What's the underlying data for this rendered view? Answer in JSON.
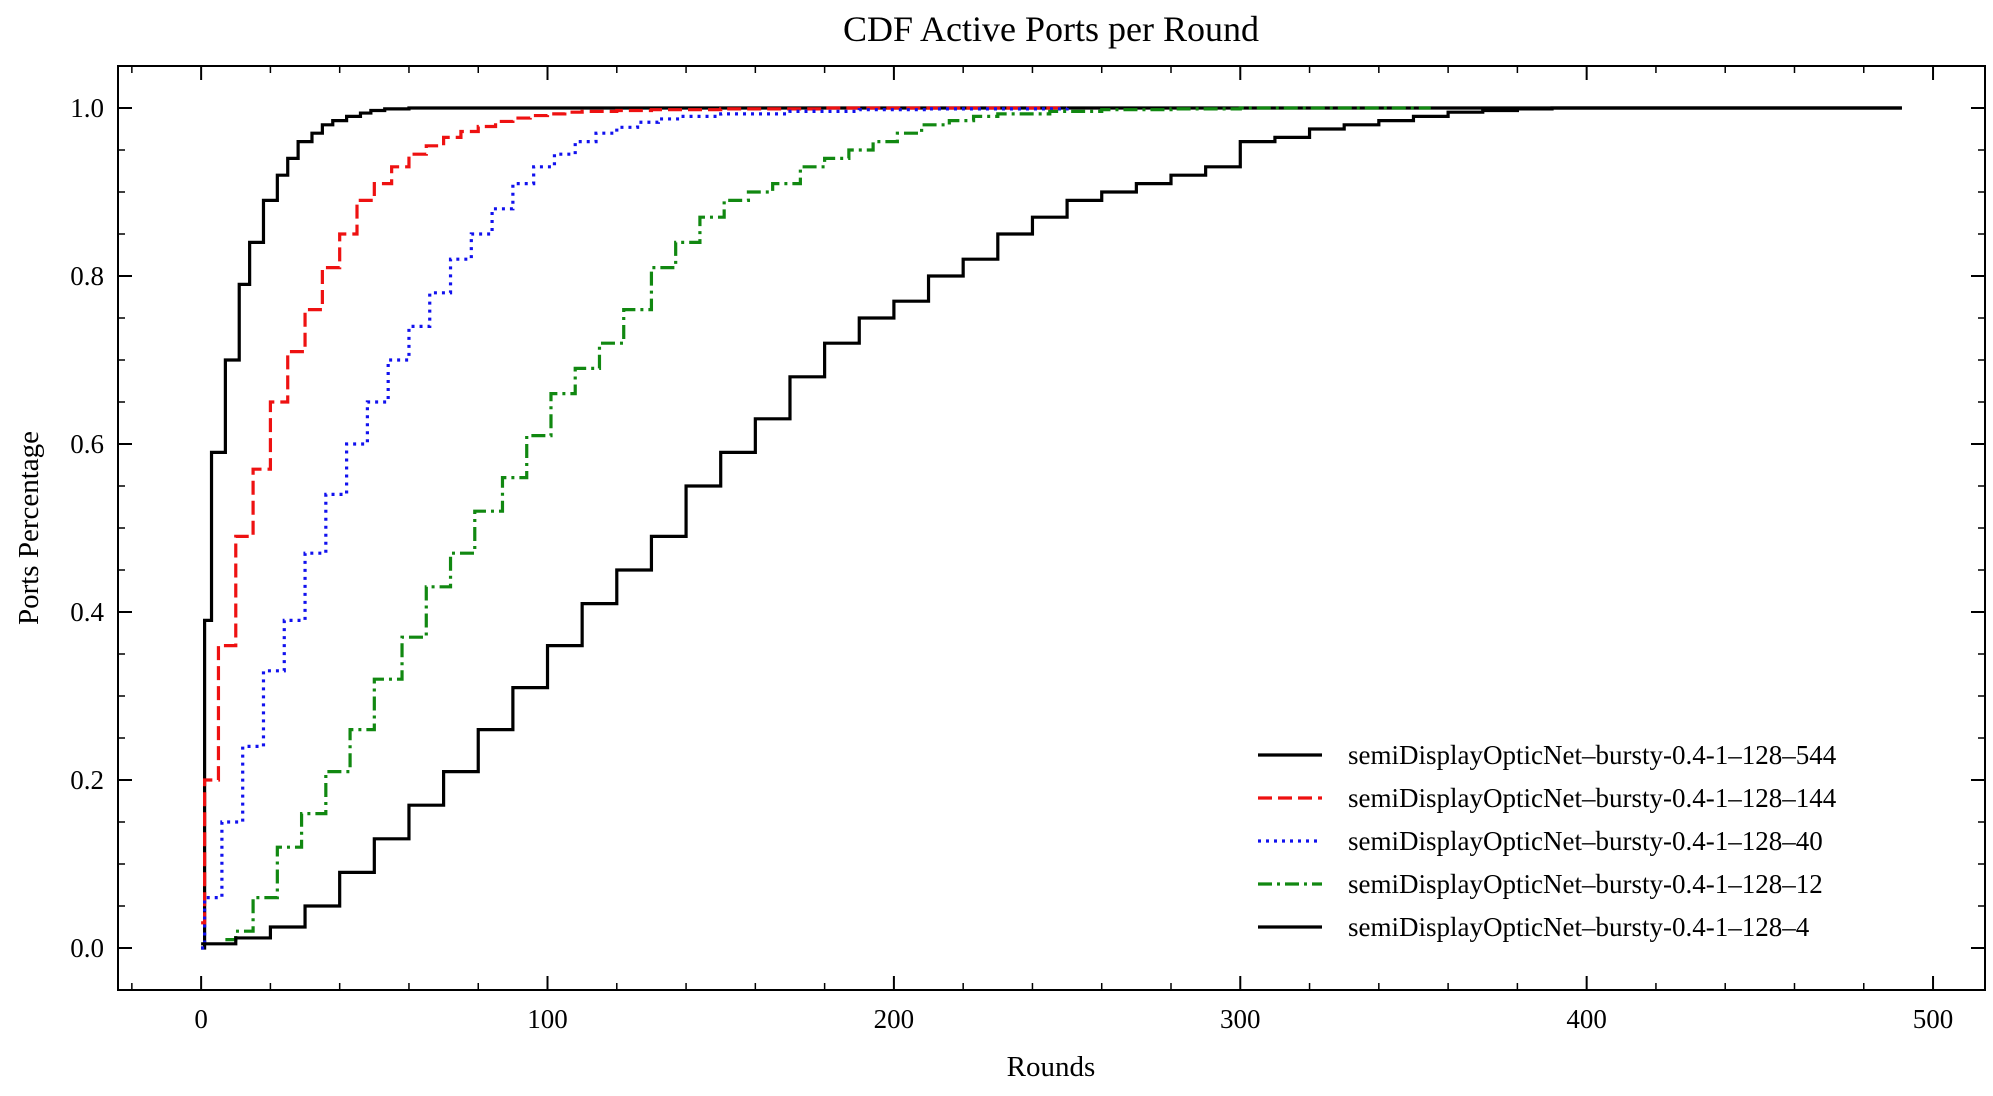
{
  "chart_data": {
    "type": "line",
    "title": "CDF Active Ports per Round",
    "xlabel": "Rounds",
    "ylabel": "Ports Percentage",
    "xlim": [
      -24,
      515
    ],
    "ylim": [
      -0.05,
      1.05
    ],
    "xticks": [
      0,
      100,
      200,
      300,
      400,
      500
    ],
    "xtick_labels": [
      "0",
      "100",
      "200",
      "300",
      "400",
      "500"
    ],
    "yticks": [
      0.0,
      0.2,
      0.4,
      0.6,
      0.8,
      1.0
    ],
    "ytick_labels": [
      "0.0",
      "0.2",
      "0.4",
      "0.6",
      "0.8",
      "1.0"
    ],
    "grid": false,
    "legend_position": "lower-right",
    "step": "post",
    "series": [
      {
        "name": "semiDisplayOpticNet–bursty-0.4-1–128–544",
        "color": "#000000",
        "dash": "solid",
        "x": [
          0,
          1,
          3,
          7,
          11,
          14,
          18,
          22,
          25,
          28,
          32,
          35,
          38,
          42,
          46,
          49,
          53,
          60,
          70,
          90,
          491
        ],
        "y": [
          0.0,
          0.39,
          0.59,
          0.7,
          0.79,
          0.84,
          0.89,
          0.92,
          0.94,
          0.96,
          0.97,
          0.98,
          0.985,
          0.99,
          0.994,
          0.997,
          0.999,
          1.0,
          1.0,
          1.0,
          1.0
        ]
      },
      {
        "name": "semiDisplayOpticNet–bursty-0.4-1–128–144",
        "color": "#ee1111",
        "dash": "dashed",
        "x": [
          0,
          1,
          5,
          10,
          15,
          20,
          25,
          30,
          35,
          40,
          45,
          50,
          55,
          60,
          65,
          70,
          75,
          80,
          85,
          90,
          95,
          100,
          105,
          110,
          120,
          130,
          150,
          180,
          250
        ],
        "y": [
          0.03,
          0.2,
          0.36,
          0.49,
          0.57,
          0.65,
          0.71,
          0.76,
          0.81,
          0.85,
          0.89,
          0.91,
          0.93,
          0.945,
          0.955,
          0.965,
          0.972,
          0.978,
          0.984,
          0.988,
          0.991,
          0.993,
          0.995,
          0.996,
          0.997,
          0.998,
          0.999,
          1.0,
          1.0
        ]
      },
      {
        "name": "semiDisplayOpticNet–bursty-0.4-1–128–40",
        "color": "#1111ee",
        "dash": "dotted",
        "x": [
          0,
          1,
          6,
          12,
          18,
          24,
          30,
          36,
          42,
          48,
          54,
          60,
          66,
          72,
          78,
          84,
          90,
          96,
          102,
          108,
          114,
          120,
          126,
          132,
          138,
          150,
          170,
          190,
          210,
          250
        ],
        "y": [
          0.0,
          0.06,
          0.15,
          0.24,
          0.33,
          0.39,
          0.47,
          0.54,
          0.6,
          0.65,
          0.7,
          0.74,
          0.78,
          0.82,
          0.85,
          0.88,
          0.91,
          0.93,
          0.945,
          0.96,
          0.97,
          0.977,
          0.983,
          0.987,
          0.99,
          0.993,
          0.996,
          0.998,
          0.999,
          1.0
        ]
      },
      {
        "name": "semiDisplayOpticNet–bursty-0.4-1–128–12",
        "color": "#118811",
        "dash": "dashdot",
        "x": [
          7,
          10,
          15,
          22,
          29,
          36,
          43,
          50,
          58,
          65,
          72,
          79,
          87,
          94,
          101,
          108,
          115,
          122,
          130,
          137,
          144,
          151,
          158,
          165,
          173,
          180,
          187,
          194,
          201,
          208,
          216,
          223,
          230,
          245,
          260,
          280,
          300,
          355
        ],
        "y": [
          0.01,
          0.02,
          0.06,
          0.12,
          0.16,
          0.21,
          0.26,
          0.32,
          0.37,
          0.43,
          0.47,
          0.52,
          0.56,
          0.61,
          0.66,
          0.69,
          0.72,
          0.76,
          0.81,
          0.84,
          0.87,
          0.89,
          0.9,
          0.91,
          0.93,
          0.94,
          0.95,
          0.96,
          0.97,
          0.98,
          0.985,
          0.99,
          0.993,
          0.996,
          0.998,
          0.999,
          1.0,
          1.0
        ]
      },
      {
        "name": "semiDisplayOpticNet–bursty-0.4-1–128–4",
        "color": "#000000",
        "dash": "solid",
        "x": [
          0,
          10,
          20,
          30,
          40,
          50,
          60,
          70,
          80,
          90,
          100,
          110,
          120,
          130,
          140,
          150,
          160,
          170,
          180,
          190,
          200,
          210,
          220,
          230,
          240,
          250,
          260,
          270,
          280,
          290,
          300,
          310,
          320,
          330,
          340,
          350,
          360,
          370,
          380,
          390,
          491
        ],
        "y": [
          0.005,
          0.012,
          0.025,
          0.05,
          0.09,
          0.13,
          0.17,
          0.21,
          0.26,
          0.31,
          0.36,
          0.41,
          0.45,
          0.49,
          0.55,
          0.59,
          0.63,
          0.68,
          0.72,
          0.75,
          0.77,
          0.8,
          0.82,
          0.85,
          0.87,
          0.89,
          0.9,
          0.91,
          0.92,
          0.93,
          0.96,
          0.965,
          0.975,
          0.98,
          0.985,
          0.99,
          0.995,
          0.997,
          0.999,
          1.0,
          1.0
        ]
      }
    ]
  }
}
